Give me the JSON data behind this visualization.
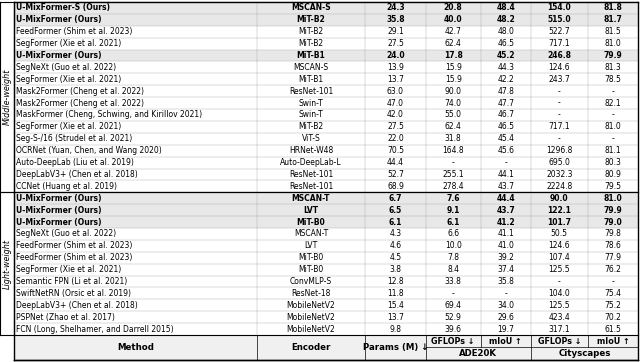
{
  "headers_row1": [
    "Method",
    "Encoder",
    "Params (M) ↓",
    "ADE20K",
    "Cityscapes"
  ],
  "headers_row2": [
    "",
    "",
    "",
    "GFLOPs ↓",
    "mIoU ↑",
    "GFLOPs ↓",
    "mIoU ↑"
  ],
  "light_weight_rows": [
    [
      "FCN (Long, Shelhamer, and Darrell 2015)",
      "MobileNetV2",
      "9.8",
      "39.6",
      "19.7",
      "317.1",
      "61.5",
      false
    ],
    [
      "PSPNet (Zhao et al. 2017)",
      "MobileNetV2",
      "13.7",
      "52.9",
      "29.6",
      "423.4",
      "70.2",
      false
    ],
    [
      "DeepLabV3+ (Chen et al. 2018)",
      "MobileNetV2",
      "15.4",
      "69.4",
      "34.0",
      "125.5",
      "75.2",
      false
    ],
    [
      "SwiftNetRN (Orsic et al. 2019)",
      "ResNet-18",
      "11.8",
      "-",
      "-",
      "104.0",
      "75.4",
      false
    ],
    [
      "Semantic FPN (Li et al. 2021)",
      "ConvMLP-S",
      "12.8",
      "33.8",
      "35.8",
      "-",
      "-",
      false
    ],
    [
      "SegFormer (Xie et al. 2021)",
      "MiT-B0",
      "3.8",
      "8.4",
      "37.4",
      "125.5",
      "76.2",
      false
    ],
    [
      "FeedFormer (Shim et al. 2023)",
      "MiT-B0",
      "4.5",
      "7.8",
      "39.2",
      "107.4",
      "77.9",
      false
    ],
    [
      "FeedFormer (Shim et al. 2023)",
      "LVT",
      "4.6",
      "10.0",
      "41.0",
      "124.6",
      "78.6",
      false
    ],
    [
      "SegNeXt (Guo et al. 2022)",
      "MSCAN-T",
      "4.3",
      "6.6",
      "41.1",
      "50.5",
      "79.8",
      false
    ],
    [
      "U-MixFormer (Ours)",
      "MiT-B0",
      "6.1",
      "6.1",
      "41.2",
      "101.7",
      "79.0",
      true
    ],
    [
      "U-MixFormer (Ours)",
      "LVT",
      "6.5",
      "9.1",
      "43.7",
      "122.1",
      "79.9",
      true
    ],
    [
      "U-MixFormer (Ours)",
      "MSCAN-T",
      "6.7",
      "7.6",
      "44.4",
      "90.0",
      "81.0",
      true
    ]
  ],
  "middle_weight_rows": [
    [
      "CCNet (Huang et al. 2019)",
      "ResNet-101",
      "68.9",
      "278.4",
      "43.7",
      "2224.8",
      "79.5",
      false
    ],
    [
      "DeepLabV3+ (Chen et al. 2018)",
      "ResNet-101",
      "52.7",
      "255.1",
      "44.1",
      "2032.3",
      "80.9",
      false
    ],
    [
      "Auto-DeepLab (Liu et al. 2019)",
      "Auto-DeepLab-L",
      "44.4",
      "-",
      "-",
      "695.0",
      "80.3",
      false
    ],
    [
      "OCRNet (Yuan, Chen, and Wang 2020)",
      "HRNet-W48",
      "70.5",
      "164.8",
      "45.6",
      "1296.8",
      "81.1",
      false
    ],
    [
      "Seg-S-/16 (Strudel et al. 2021)",
      "ViT-S",
      "22.0",
      "31.8",
      "45.4",
      "-",
      "-",
      false
    ],
    [
      "SegFormer (Xie et al. 2021)",
      "MiT-B2",
      "27.5",
      "62.4",
      "46.5",
      "717.1",
      "81.0",
      false
    ],
    [
      "MaskFormer (Cheng, Schwing, and Kirillov 2021)",
      "Swin-T",
      "42.0",
      "55.0",
      "46.7",
      "-",
      "-",
      false
    ],
    [
      "Mask2Former (Cheng et al. 2022)",
      "Swin-T",
      "47.0",
      "74.0",
      "47.7",
      "-",
      "82.1",
      false
    ],
    [
      "Mask2Former (Cheng et al. 2022)",
      "ResNet-101",
      "63.0",
      "90.0",
      "47.8",
      "-",
      "-",
      false
    ],
    [
      "SegFormer (Xie et al. 2021)",
      "MiT-B1",
      "13.7",
      "15.9",
      "42.2",
      "243.7",
      "78.5",
      false
    ],
    [
      "SegNeXt (Guo et al. 2022)",
      "MSCAN-S",
      "13.9",
      "15.9",
      "44.3",
      "124.6",
      "81.3",
      false
    ],
    [
      "U-MixFormer (Ours)",
      "MiT-B1",
      "24.0",
      "17.8",
      "45.2",
      "246.8",
      "79.9",
      true
    ],
    [
      "SegFormer (Xie et al. 2021)",
      "MiT-B2",
      "27.5",
      "62.4",
      "46.5",
      "717.1",
      "81.0",
      false
    ],
    [
      "FeedFormer (Shim et al. 2023)",
      "MiT-B2",
      "29.1",
      "42.7",
      "48.0",
      "522.7",
      "81.5",
      false
    ],
    [
      "U-MixFormer (Ours)",
      "MiT-B2",
      "35.8",
      "40.0",
      "48.2",
      "515.0",
      "81.7",
      true
    ],
    [
      "U-MixFormer-S (Ours)",
      "MSCAN-S",
      "24.3",
      "20.8",
      "48.4",
      "154.0",
      "81.8",
      true
    ]
  ],
  "light_label": "Light-weight",
  "middle_label": "Middle-weight"
}
